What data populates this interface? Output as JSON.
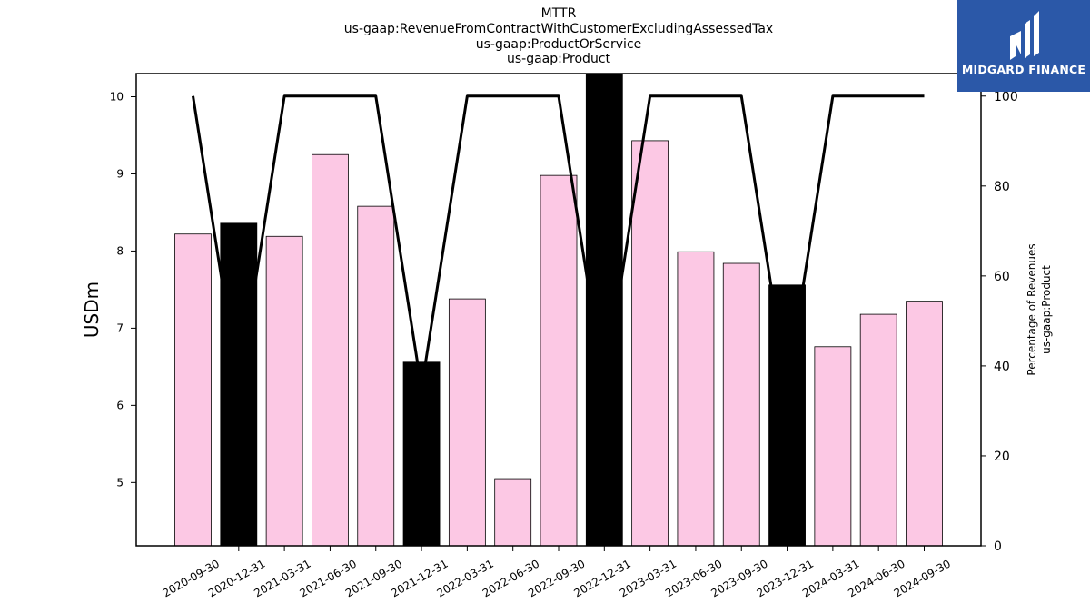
{
  "titles": [
    "MTTR",
    "us-gaap:RevenueFromContractWithCustomerExcludingAssessedTax",
    "us-gaap:ProductOrService",
    "us-gaap:Product"
  ],
  "logo": {
    "text": "MIDGARD FINANCE",
    "background": "#2b58a8"
  },
  "chart_data": {
    "type": "bar",
    "ylabel": "USDm",
    "y2label_lines": [
      "Percentage of Revenues",
      "us-gaap:Product"
    ],
    "ylim": [
      4.18,
      10.3
    ],
    "y2lim": [
      0,
      105
    ],
    "yticks": [
      5,
      6,
      7,
      8,
      9,
      10
    ],
    "y2ticks": [
      0,
      20,
      40,
      60,
      80,
      100
    ],
    "categories": [
      "2020-09-30",
      "2020-12-31",
      "2021-03-31",
      "2021-06-30",
      "2021-09-30",
      "2021-12-31",
      "2022-03-31",
      "2022-06-30",
      "2022-09-30",
      "2022-12-31",
      "2023-03-31",
      "2023-06-30",
      "2023-09-30",
      "2023-12-31",
      "2024-03-31",
      "2024-06-30",
      "2024-09-30"
    ],
    "series": [
      {
        "type": "bar",
        "values": [
          8.22,
          8.36,
          8.19,
          9.25,
          8.58,
          6.56,
          7.38,
          5.05,
          8.98,
          10.3,
          9.43,
          7.99,
          7.84,
          7.56,
          6.76,
          7.18,
          7.35
        ]
      },
      {
        "type": "line",
        "axis": "right",
        "values": [
          100,
          35,
          100,
          100,
          100,
          35,
          100,
          100,
          100,
          35,
          100,
          100,
          100,
          35,
          100,
          100,
          100
        ]
      }
    ],
    "colors": {
      "bar_fill": "#fcc8e4",
      "bar_dark": "#000000",
      "line": "#000000"
    }
  }
}
